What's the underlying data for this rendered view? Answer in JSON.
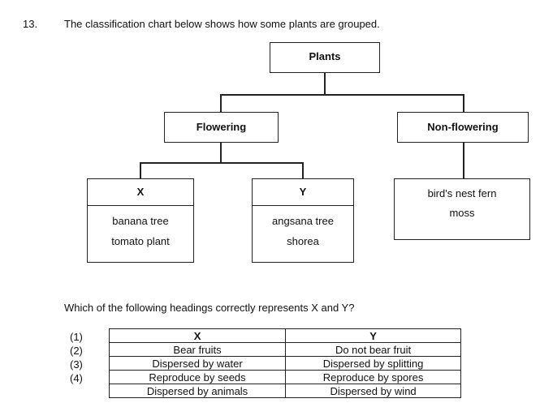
{
  "question": {
    "number": "13.",
    "text": "The classification chart below shows how some plants are grouped."
  },
  "chart": {
    "root": "Plants",
    "flowering": "Flowering",
    "non_flowering": "Non-flowering",
    "x_label": "X",
    "y_label": "Y",
    "x_items": [
      "banana tree",
      "tomato plant"
    ],
    "y_items": [
      "angsana tree",
      "shorea"
    ],
    "nf_items": [
      "bird's nest fern",
      "moss"
    ]
  },
  "prompt": "Which of the following headings correctly represents X and Y?",
  "answer_table": {
    "headers": [
      "X",
      "Y"
    ],
    "rows": [
      {
        "option": "(1)",
        "x": "Bear fruits",
        "y": "Do not bear fruit"
      },
      {
        "option": "(2)",
        "x": "Dispersed by water",
        "y": "Dispersed by splitting"
      },
      {
        "option": "(3)",
        "x": "Reproduce by seeds",
        "y": "Reproduce by spores"
      },
      {
        "option": "(4)",
        "x": "Dispersed by animals",
        "y": "Dispersed by wind"
      }
    ]
  }
}
